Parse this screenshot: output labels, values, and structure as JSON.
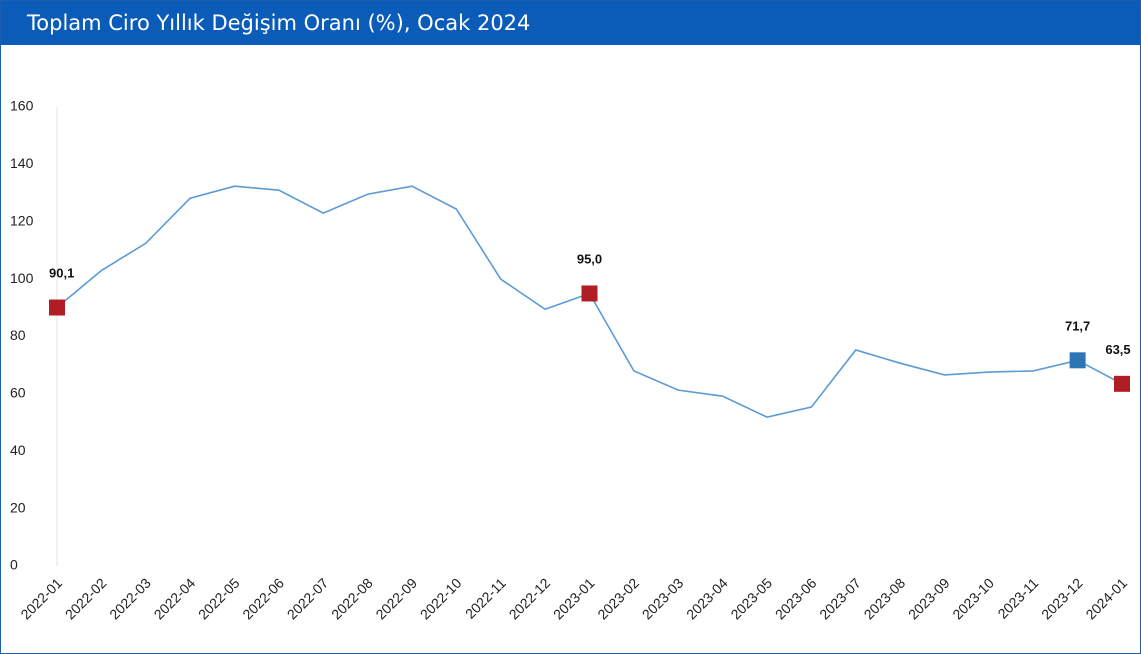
{
  "chart_data": {
    "type": "line",
    "title": "Toplam Ciro Yıllık Değişim Oranı (%), Ocak 2024",
    "categories": [
      "2022-01",
      "2022-02",
      "2022-03",
      "2022-04",
      "2022-05",
      "2022-06",
      "2022-07",
      "2022-08",
      "2022-09",
      "2022-10",
      "2022-11",
      "2022-12",
      "2023-01",
      "2023-02",
      "2023-03",
      "2023-04",
      "2023-05",
      "2023-06",
      "2023-07",
      "2023-08",
      "2023-09",
      "2023-10",
      "2023-11",
      "2023-12",
      "2024-01"
    ],
    "series": [
      {
        "color": "#5b9bd5",
        "values": [
          90.1,
          103,
          112.5,
          128.2,
          132.4,
          131,
          123,
          129.6,
          132.4,
          124.4,
          100,
          89.5,
          95.0,
          68,
          61.3,
          59.2,
          51.9,
          55.4,
          75.3,
          70.7,
          66.6,
          67.6,
          68,
          71.7,
          63.5
        ],
        "value_labels": [
          "90,1",
          null,
          null,
          null,
          null,
          null,
          null,
          null,
          null,
          null,
          null,
          null,
          "95,0",
          null,
          null,
          null,
          null,
          null,
          null,
          null,
          null,
          null,
          null,
          "71,7",
          "63,5"
        ],
        "marker_colors": [
          "#b11d24",
          null,
          null,
          null,
          null,
          null,
          null,
          null,
          null,
          null,
          null,
          null,
          "#b11d24",
          null,
          null,
          null,
          null,
          null,
          null,
          null,
          null,
          null,
          null,
          "#2e75b6",
          "#b11d24"
        ]
      }
    ],
    "ylim": [
      0,
      160
    ],
    "yticks": [
      0,
      20,
      40,
      60,
      80,
      100,
      120,
      140,
      160
    ],
    "grid": false
  }
}
